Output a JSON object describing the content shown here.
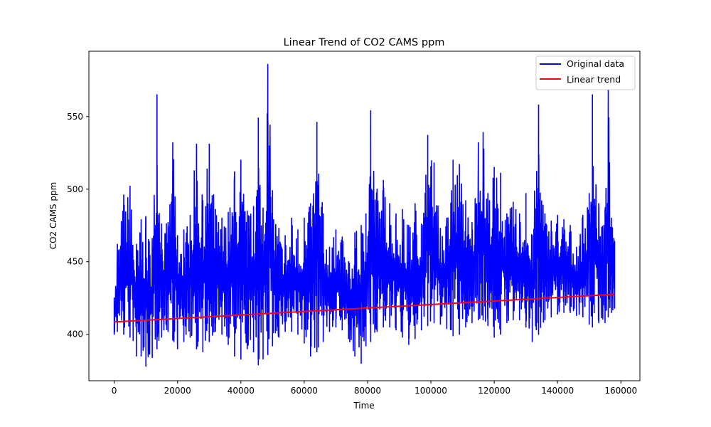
{
  "chart_data": {
    "type": "line",
    "title": "Linear Trend of CO2 CAMS ppm",
    "xlabel": "Time",
    "ylabel": "CO2 CAMS ppm",
    "xlim": [
      -8000,
      166000
    ],
    "ylim": [
      368,
      595
    ],
    "x_ticks": [
      0,
      20000,
      40000,
      60000,
      80000,
      100000,
      120000,
      140000,
      160000
    ],
    "x_tick_labels": [
      "0",
      "20000",
      "40000",
      "60000",
      "80000",
      "100000",
      "120000",
      "140000",
      "160000"
    ],
    "y_ticks": [
      400,
      450,
      500,
      550
    ],
    "y_tick_labels": [
      "400",
      "450",
      "500",
      "550"
    ],
    "grid": false,
    "legend_position": "top-right",
    "series": [
      {
        "name": "Original data",
        "color": "#0000ff",
        "kind": "envelope",
        "x": [
          0,
          1000,
          3000,
          5000,
          7000,
          8500,
          10000,
          12000,
          13500,
          15000,
          17000,
          18500,
          20000,
          22000,
          24000,
          26000,
          28000,
          30000,
          32000,
          34000,
          36000,
          38000,
          40000,
          42000,
          44000,
          45500,
          47000,
          48500,
          50000,
          52000,
          54000,
          56000,
          58000,
          60000,
          62000,
          64000,
          66000,
          68000,
          70000,
          72000,
          74000,
          76000,
          78000,
          79500,
          81000,
          83000,
          85000,
          87000,
          89000,
          91000,
          93000,
          95000,
          97000,
          99000,
          101000,
          103000,
          105000,
          107000,
          109000,
          111000,
          113000,
          115000,
          116500,
          118000,
          120000,
          122000,
          124000,
          126000,
          128000,
          130000,
          132000,
          134000,
          136000,
          138000,
          140000,
          142000,
          144000,
          146000,
          148000,
          150000,
          151000,
          153000,
          155000,
          156000,
          157000,
          158000
        ],
        "upper": [
          425,
          462,
          496,
          502,
          462,
          479,
          481,
          466,
          565,
          476,
          477,
          532,
          468,
          472,
          482,
          531,
          492,
          531,
          486,
          480,
          484,
          512,
          520,
          485,
          488,
          549,
          487,
          586,
          499,
          473,
          468,
          480,
          472,
          480,
          490,
          546,
          483,
          460,
          472,
          467,
          450,
          470,
          475,
          483,
          554,
          500,
          506,
          490,
          483,
          486,
          475,
          490,
          476,
          537,
          518,
          473,
          480,
          520,
          517,
          492,
          477,
          532,
          539,
          497,
          515,
          511,
          483,
          491,
          483,
          497,
          468,
          558,
          483,
          478,
          482,
          479,
          475,
          460,
          482,
          497,
          565,
          490,
          486,
          569,
          480,
          464
        ],
        "lower": [
          400,
          402,
          400,
          398,
          385,
          385,
          378,
          384,
          390,
          398,
          402,
          396,
          390,
          395,
          398,
          390,
          388,
          395,
          402,
          400,
          393,
          385,
          383,
          390,
          388,
          379,
          383,
          386,
          392,
          398,
          402,
          402,
          400,
          394,
          385,
          388,
          395,
          402,
          405,
          403,
          397,
          385,
          380,
          392,
          395,
          402,
          405,
          405,
          403,
          398,
          393,
          397,
          403,
          406,
          408,
          407,
          404,
          399,
          400,
          405,
          408,
          410,
          410,
          406,
          398,
          400,
          408,
          410,
          410,
          405,
          395,
          400,
          410,
          412,
          414,
          415,
          415,
          413,
          412,
          407,
          405,
          408,
          408,
          412,
          415,
          418
        ]
      },
      {
        "name": "Linear trend",
        "color": "#ff0000",
        "kind": "line",
        "x": [
          0,
          158000
        ],
        "y": [
          408.5,
          427.5
        ]
      }
    ]
  }
}
